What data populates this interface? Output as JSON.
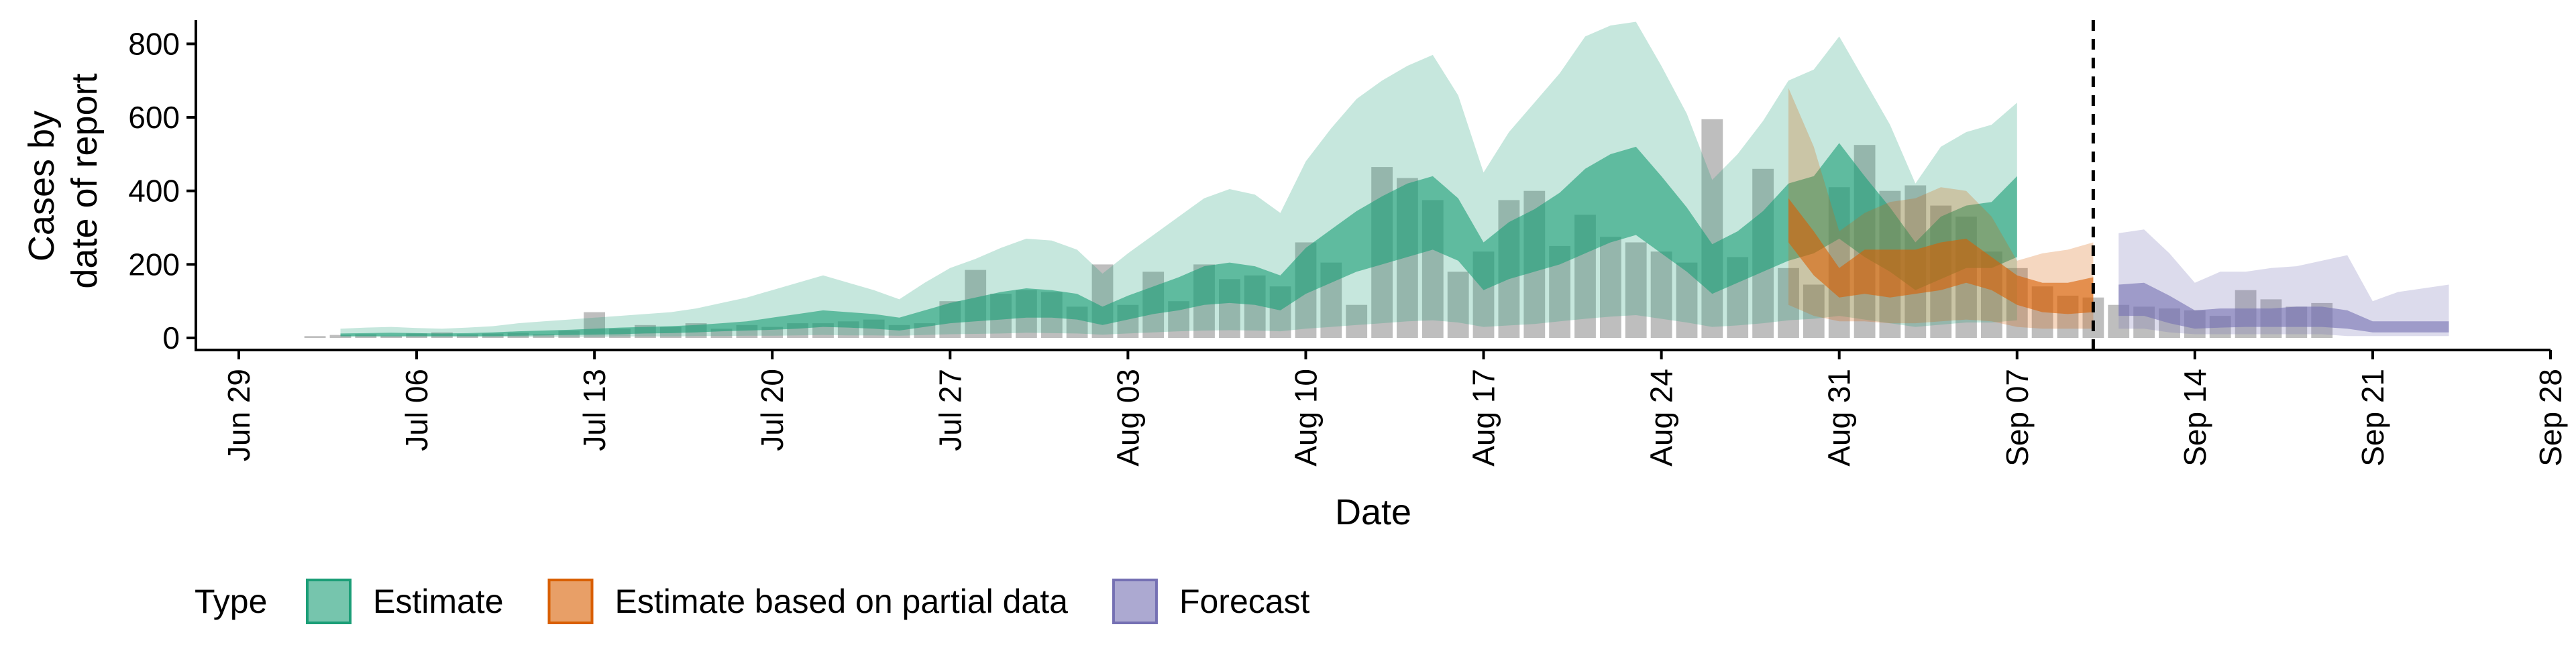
{
  "chart_data": {
    "type": "area",
    "title": "",
    "xlabel": "Date",
    "ylabel_lines": [
      "Cases by",
      "date of report"
    ],
    "x_range": [
      "2020-06-29",
      "2020-09-28"
    ],
    "ylim": [
      0,
      850
    ],
    "x_ticks": [
      {
        "date": "2020-06-29",
        "label": "Jun 29"
      },
      {
        "date": "2020-07-06",
        "label": "Jul 06"
      },
      {
        "date": "2020-07-13",
        "label": "Jul 13"
      },
      {
        "date": "2020-07-20",
        "label": "Jul 20"
      },
      {
        "date": "2020-07-27",
        "label": "Jul 27"
      },
      {
        "date": "2020-08-03",
        "label": "Aug 03"
      },
      {
        "date": "2020-08-10",
        "label": "Aug 10"
      },
      {
        "date": "2020-08-17",
        "label": "Aug 17"
      },
      {
        "date": "2020-08-24",
        "label": "Aug 24"
      },
      {
        "date": "2020-08-31",
        "label": "Aug 31"
      },
      {
        "date": "2020-09-07",
        "label": "Sep 07"
      },
      {
        "date": "2020-09-14",
        "label": "Sep 14"
      },
      {
        "date": "2020-09-21",
        "label": "Sep 21"
      },
      {
        "date": "2020-09-28",
        "label": "Sep 28"
      }
    ],
    "y_ticks": [
      0,
      200,
      400,
      600,
      800
    ],
    "grid": false,
    "forecast_date": "2020-09-10",
    "legend": {
      "title": "Type",
      "position": "bottom",
      "entries": [
        {
          "label": "Estimate",
          "color": "#1b9e77"
        },
        {
          "label": "Estimate based on partial data",
          "color": "#d95f02"
        },
        {
          "label": "Forecast",
          "color": "#7570b3"
        }
      ]
    },
    "observed_cases": {
      "color": "#a8a8a8",
      "start_date": "2020-07-02",
      "values": [
        5,
        8,
        10,
        6,
        12,
        15,
        10,
        12,
        14,
        10,
        20,
        70,
        25,
        35,
        30,
        40,
        25,
        35,
        30,
        40,
        40,
        45,
        50,
        35,
        40,
        100,
        185,
        120,
        130,
        125,
        85,
        200,
        90,
        180,
        100,
        200,
        160,
        170,
        140,
        260,
        205,
        90,
        465,
        435,
        375,
        180,
        235,
        375,
        400,
        250,
        335,
        275,
        260,
        235,
        205,
        595,
        220,
        460,
        190,
        145,
        410,
        525,
        400,
        415,
        360,
        330,
        235,
        190,
        140,
        115,
        110,
        90,
        85,
        80,
        75,
        60,
        130,
        105,
        85,
        95
      ]
    },
    "series": [
      {
        "name": "Estimate",
        "color": "#1b9e77",
        "start_date": "2020-07-03",
        "median": [
          10,
          10,
          10,
          10,
          10,
          10,
          10,
          12,
          14,
          16,
          18,
          20,
          20,
          22,
          25,
          30,
          35,
          45,
          55,
          65,
          60,
          55,
          45,
          60,
          80,
          90,
          100,
          110,
          105,
          95,
          65,
          90,
          110,
          130,
          155,
          160,
          150,
          125,
          195,
          240,
          285,
          320,
          350,
          370,
          320,
          210,
          260,
          290,
          330,
          390,
          430,
          460,
          380,
          300,
          205,
          240,
          290,
          360,
          380,
          470,
          380,
          300,
          210,
          280,
          310,
          310,
          385
        ],
        "lower50": [
          5,
          5,
          5,
          5,
          5,
          5,
          5,
          6,
          7,
          8,
          9,
          10,
          12,
          13,
          15,
          18,
          20,
          22,
          25,
          30,
          28,
          25,
          20,
          30,
          40,
          45,
          50,
          55,
          55,
          50,
          35,
          50,
          65,
          75,
          90,
          95,
          90,
          75,
          120,
          150,
          180,
          200,
          220,
          240,
          210,
          130,
          160,
          180,
          200,
          230,
          260,
          280,
          230,
          180,
          120,
          150,
          180,
          210,
          230,
          270,
          220,
          180,
          130,
          160,
          190,
          190,
          220
        ],
        "upper50": [
          12,
          13,
          14,
          13,
          12,
          13,
          15,
          18,
          20,
          22,
          25,
          28,
          30,
          32,
          35,
          40,
          45,
          55,
          65,
          75,
          70,
          65,
          55,
          75,
          95,
          110,
          125,
          135,
          130,
          120,
          85,
          115,
          140,
          165,
          195,
          205,
          195,
          170,
          245,
          295,
          345,
          385,
          420,
          440,
          380,
          260,
          315,
          350,
          395,
          460,
          500,
          520,
          440,
          355,
          255,
          290,
          345,
          420,
          440,
          530,
          440,
          355,
          260,
          330,
          360,
          370,
          440
        ],
        "lower90": [
          2,
          2,
          2,
          2,
          2,
          2,
          2,
          2,
          3,
          3,
          3,
          4,
          4,
          4,
          5,
          5,
          6,
          6,
          7,
          8,
          7,
          7,
          6,
          8,
          10,
          11,
          12,
          14,
          13,
          12,
          9,
          12,
          15,
          18,
          20,
          21,
          20,
          18,
          25,
          30,
          35,
          40,
          45,
          48,
          42,
          30,
          34,
          38,
          45,
          52,
          58,
          62,
          52,
          42,
          30,
          34,
          40,
          48,
          52,
          60,
          50,
          40,
          30,
          36,
          42,
          42,
          48
        ],
        "upper90": [
          25,
          28,
          30,
          27,
          25,
          28,
          32,
          40,
          45,
          50,
          55,
          60,
          65,
          70,
          80,
          95,
          110,
          130,
          150,
          170,
          150,
          130,
          105,
          150,
          190,
          215,
          245,
          270,
          265,
          240,
          175,
          230,
          280,
          330,
          380,
          405,
          390,
          340,
          480,
          570,
          650,
          700,
          740,
          770,
          660,
          450,
          560,
          640,
          720,
          820,
          850,
          860,
          740,
          610,
          430,
          500,
          590,
          700,
          730,
          820,
          700,
          580,
          420,
          520,
          560,
          580,
          640
        ]
      },
      {
        "name": "Estimate based on partial data",
        "color": "#d95f02",
        "start_date": "2020-08-29",
        "median": [
          300,
          210,
          150,
          160,
          145,
          160,
          175,
          200,
          180,
          130,
          110,
          105,
          115
        ],
        "lower50": [
          260,
          170,
          110,
          120,
          110,
          120,
          130,
          150,
          130,
          90,
          70,
          65,
          70
        ],
        "upper50": [
          380,
          290,
          190,
          240,
          240,
          240,
          260,
          270,
          220,
          170,
          150,
          150,
          165
        ],
        "lower90": [
          90,
          60,
          45,
          45,
          40,
          40,
          45,
          50,
          45,
          30,
          25,
          25,
          25
        ],
        "upper90": [
          680,
          520,
          290,
          340,
          370,
          380,
          410,
          400,
          330,
          210,
          230,
          240,
          260
        ]
      },
      {
        "name": "Forecast",
        "color": "#7570b3",
        "start_date": "2020-09-11",
        "median": [
          95,
          100,
          75,
          55,
          55,
          55,
          60,
          60,
          60,
          55,
          35,
          35,
          35,
          35
        ],
        "lower50": [
          60,
          60,
          40,
          25,
          28,
          30,
          30,
          30,
          30,
          25,
          15,
          15,
          15,
          15
        ],
        "upper50": [
          145,
          150,
          115,
          75,
          80,
          80,
          80,
          85,
          85,
          75,
          45,
          45,
          45,
          45
        ],
        "lower90": [
          25,
          25,
          15,
          10,
          10,
          10,
          10,
          10,
          10,
          5,
          5,
          5,
          5,
          5
        ],
        "upper90": [
          285,
          295,
          230,
          150,
          180,
          180,
          190,
          195,
          210,
          225,
          100,
          125,
          135,
          145
        ]
      }
    ]
  }
}
